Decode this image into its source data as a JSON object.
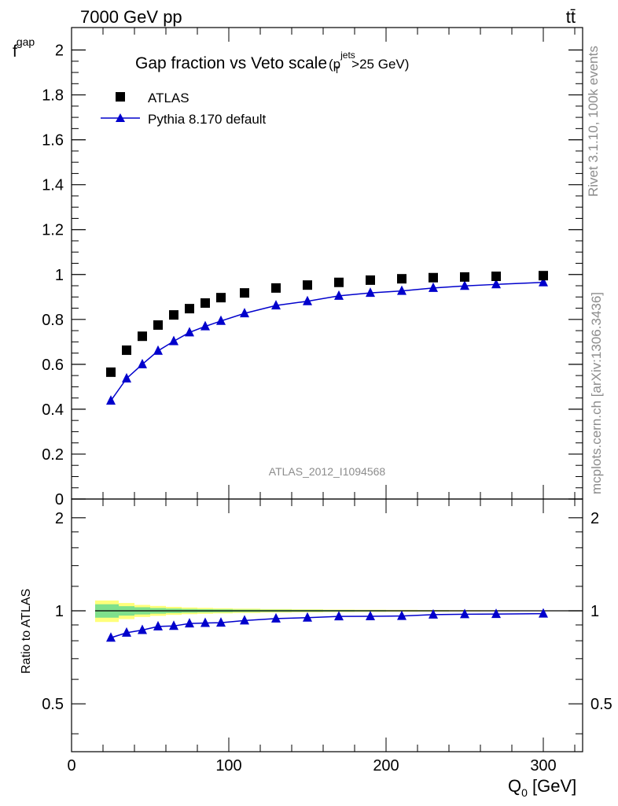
{
  "header": {
    "left_label": "7000 GeV pp",
    "right_label": "tt̄"
  },
  "side_labels": {
    "rivet": "Rivet 3.1.10,  100k events",
    "mcplots": "mcplots.cern.ch [arXiv:1306.3436]"
  },
  "colors": {
    "data": "#000000",
    "mc": "#0000cc",
    "band_inner": "#7fe08c",
    "band_outer": "#ffff7a",
    "watermark": "#8c8c8c"
  },
  "chart_data": [
    {
      "type": "scatter",
      "title": "Gap fraction vs Veto scale",
      "title_suffix": "(p",
      "title_sup": "jets",
      "title_sub": "T",
      "title_tail": ">25 GeV)",
      "ylabel_main": "f",
      "ylabel_sub": "gap",
      "watermark": "ATLAS_2012_I1094568",
      "xlim": [
        0,
        325
      ],
      "ylim": [
        0,
        2.1
      ],
      "yticks": [
        0,
        0.2,
        0.4,
        0.6,
        0.8,
        1,
        1.2,
        1.4,
        1.6,
        1.8,
        2
      ],
      "ytick_labels": [
        "0",
        "0.2",
        "0.4",
        "0.6",
        "0.8",
        "1",
        "1.2",
        "1.4",
        "1.6",
        "1.8",
        "2"
      ],
      "legend": {
        "placement": "top-left",
        "data_label": "ATLAS",
        "mc_label": "Pythia 8.170 default"
      },
      "x": [
        25,
        35,
        45,
        55,
        65,
        75,
        85,
        95,
        110,
        130,
        150,
        170,
        190,
        210,
        230,
        250,
        270,
        300
      ],
      "series": [
        {
          "name": "ATLAS",
          "marker": "square",
          "values": [
            0.565,
            0.663,
            0.725,
            0.775,
            0.82,
            0.848,
            0.873,
            0.897,
            0.918,
            0.94,
            0.953,
            0.965,
            0.975,
            0.981,
            0.986,
            0.989,
            0.992,
            0.995
          ]
        },
        {
          "name": "Pythia 8.170 default",
          "marker": "triangle",
          "values": [
            0.438,
            0.537,
            0.6,
            0.66,
            0.703,
            0.742,
            0.769,
            0.793,
            0.827,
            0.862,
            0.881,
            0.905,
            0.918,
            0.927,
            0.94,
            0.949,
            0.956,
            0.965
          ]
        }
      ]
    },
    {
      "type": "line",
      "ylabel": "Ratio to ATLAS",
      "xlabel_main": "Q",
      "xlabel_sub": "0",
      "xlabel_tail": " [GeV]",
      "xlim": [
        0,
        325
      ],
      "xticks": [
        0,
        100,
        200,
        300
      ],
      "xtick_labels": [
        "0",
        "100",
        "200",
        "300"
      ],
      "ylim": [
        0.35,
        2.3
      ],
      "ylog": true,
      "yticks": [
        0.5,
        1,
        2
      ],
      "ytick_labels": [
        "0.5",
        "1",
        "2"
      ],
      "x": [
        25,
        35,
        45,
        55,
        65,
        75,
        85,
        95,
        110,
        130,
        150,
        170,
        190,
        210,
        230,
        250,
        270,
        300
      ],
      "ratio": [
        0.818,
        0.849,
        0.866,
        0.89,
        0.893,
        0.91,
        0.913,
        0.915,
        0.93,
        0.944,
        0.95,
        0.959,
        0.96,
        0.962,
        0.972,
        0.975,
        0.976,
        0.979
      ],
      "band_inner": [
        0.05,
        0.035,
        0.027,
        0.021,
        0.017,
        0.014,
        0.012,
        0.011,
        0.009,
        0.008,
        0.007,
        0.006,
        0.005,
        0.004,
        0.004,
        0.003,
        0.003,
        0.002
      ],
      "band_outer": [
        0.08,
        0.06,
        0.045,
        0.037,
        0.03,
        0.025,
        0.022,
        0.019,
        0.016,
        0.013,
        0.011,
        0.009,
        0.008,
        0.007,
        0.006,
        0.005,
        0.004,
        0.003
      ]
    }
  ]
}
